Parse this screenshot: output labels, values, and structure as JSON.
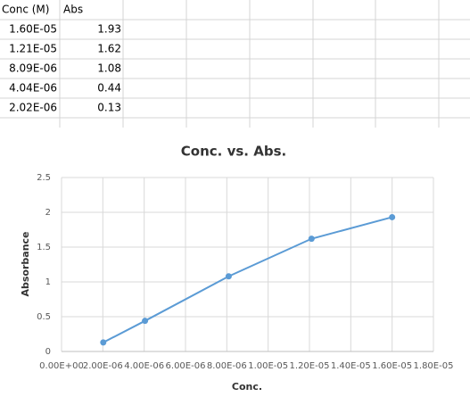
{
  "table": {
    "header": [
      "Conc (M)",
      "Abs"
    ],
    "rows": [
      [
        "1.60E-05",
        "1.93"
      ],
      [
        "1.21E-05",
        "1.62"
      ],
      [
        "8.09E-06",
        "1.08"
      ],
      [
        "4.04E-06",
        "0.44"
      ],
      [
        "2.02E-06",
        "0.13"
      ]
    ]
  },
  "chart_data": {
    "type": "line",
    "title": "Conc. vs. Abs.",
    "x_label": "Conc.",
    "y_label": "Absorbance",
    "x": [
      1.6e-05,
      1.21e-05,
      8.09e-06,
      4.04e-06,
      2.02e-06
    ],
    "series": [
      {
        "name": "Abs",
        "color": "#5b9bd5",
        "values": [
          1.93,
          1.62,
          1.08,
          0.44,
          0.13
        ]
      }
    ],
    "xlim": [
      0,
      1.8e-05
    ],
    "xticks": [
      {
        "value": 0,
        "label": "0.00E+00"
      },
      {
        "value": 2e-06,
        "label": "2.00E-06"
      },
      {
        "value": 4e-06,
        "label": "4.00E-06"
      },
      {
        "value": 6e-06,
        "label": "6.00E-06"
      },
      {
        "value": 8e-06,
        "label": "8.00E-06"
      },
      {
        "value": 1e-05,
        "label": "1.00E-05"
      },
      {
        "value": 1.2e-05,
        "label": "1.20E-05"
      },
      {
        "value": 1.4e-05,
        "label": "1.40E-05"
      },
      {
        "value": 1.6e-05,
        "label": "1.60E-05"
      },
      {
        "value": 1.8e-05,
        "label": "1.80E-05"
      }
    ],
    "ylim": [
      0,
      2.5
    ],
    "yticks": [
      0,
      0.5,
      1,
      1.5,
      2,
      2.5
    ],
    "grid": true
  }
}
